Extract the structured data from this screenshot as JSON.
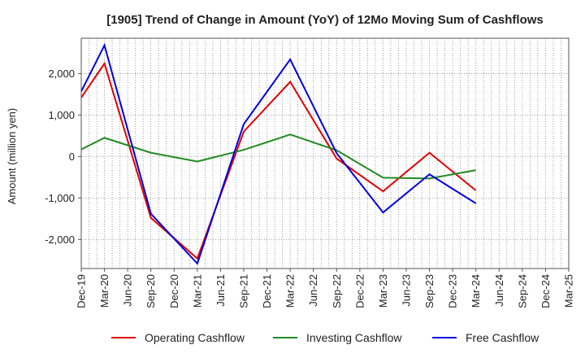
{
  "chart_data": {
    "type": "line",
    "title": "[1905]  Trend of Change in Amount (YoY) of 12Mo Moving Sum of Cashflows",
    "xlabel": "",
    "ylabel": "Amount (million yen)",
    "ylim": [
      -2700,
      2850
    ],
    "yticks": [
      2000,
      1000,
      0,
      -1000,
      -2000
    ],
    "ytick_labels": [
      "2,000",
      "1,000",
      "0",
      "-1,000",
      "-2,000"
    ],
    "categories": [
      "Dec-19",
      "Mar-20",
      "Jun-20",
      "Sep-20",
      "Dec-20",
      "Mar-21",
      "Jun-21",
      "Sep-21",
      "Dec-21",
      "Mar-22",
      "Jun-22",
      "Sep-22",
      "Dec-22",
      "Mar-23",
      "Jun-23",
      "Sep-23",
      "Dec-23",
      "Mar-24",
      "Jun-24",
      "Sep-24",
      "Dec-24",
      "Mar-25"
    ],
    "grid": true,
    "legend_position": "bottom",
    "series": [
      {
        "name": "Operating Cashflow",
        "color": "#e00000",
        "values": [
          1420,
          2240,
          null,
          -1480,
          null,
          -2460,
          null,
          600,
          null,
          1800,
          null,
          -50,
          null,
          -840,
          null,
          90,
          null,
          -820,
          null,
          null,
          null,
          null
        ]
      },
      {
        "name": "Investing Cashflow",
        "color": "#228b22",
        "values": [
          170,
          450,
          null,
          90,
          null,
          -120,
          null,
          160,
          null,
          530,
          null,
          150,
          null,
          -510,
          null,
          -530,
          null,
          -330,
          null,
          null,
          null,
          null
        ]
      },
      {
        "name": "Free Cashflow",
        "color": "#0000dd",
        "values": [
          1570,
          2680,
          null,
          -1380,
          null,
          -2580,
          null,
          780,
          null,
          2340,
          null,
          80,
          null,
          -1350,
          null,
          -430,
          null,
          -1130,
          null,
          null,
          null,
          null
        ]
      }
    ]
  }
}
